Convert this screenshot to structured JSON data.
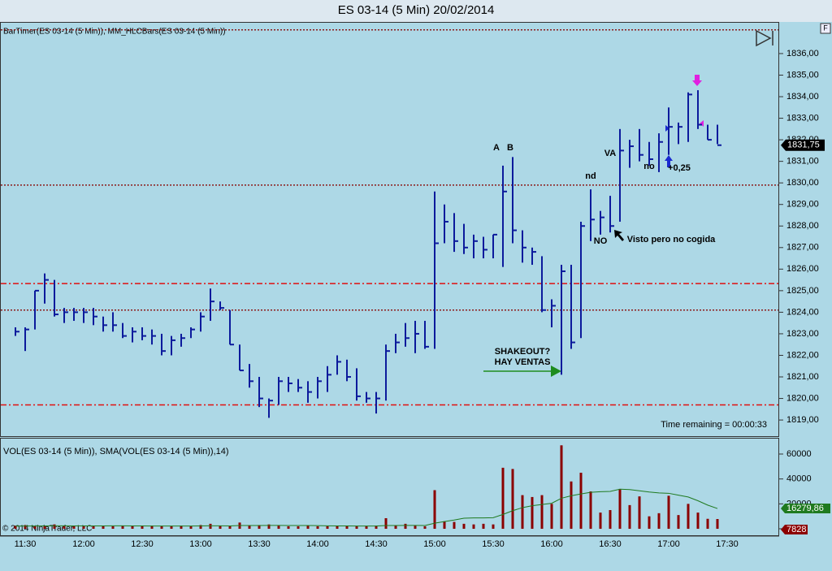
{
  "window": {
    "button": "F",
    "copyright": "© 2014 NinjaTrader, LLC"
  },
  "chart_data": [
    {
      "type": "hlc",
      "title": "ES 03-14 (5 Min)  20/02/2014",
      "label": "BarTimer(ES 03-14 (5 Min)), MM_HLCBars(ES 03-14 (5 Min))",
      "timer_text": "Time remaining = 00:00:33",
      "color": "#0c1a9c",
      "categories": [
        null,
        "11:30",
        null,
        null,
        null,
        null,
        null,
        "12:00",
        null,
        null,
        null,
        null,
        null,
        "12:30",
        null,
        null,
        null,
        null,
        null,
        "13:00",
        null,
        null,
        null,
        null,
        null,
        "13:30",
        null,
        null,
        null,
        null,
        null,
        "14:00",
        null,
        null,
        null,
        null,
        null,
        "14:30",
        null,
        null,
        null,
        null,
        null,
        "15:00",
        null,
        null,
        null,
        null,
        null,
        "15:30",
        null,
        null,
        null,
        null,
        null,
        "16:00",
        null,
        null,
        null,
        null,
        null,
        "16:30",
        null,
        null,
        null,
        null,
        null,
        "17:00",
        null,
        null,
        null,
        null,
        null,
        "17:30"
      ],
      "high": [
        1823.3,
        1823.3,
        1825.0,
        1825.8,
        1825.5,
        1824.2,
        1824.2,
        1824.2,
        1824.2,
        1823.8,
        1824.0,
        1823.5,
        1823.3,
        1823.3,
        1823.2,
        1823.0,
        1822.9,
        1823.0,
        1823.3,
        1824.0,
        1825.1,
        1824.5,
        1824.1,
        1822.5,
        1821.6,
        1821.0,
        1820.0,
        1821.0,
        1821.0,
        1820.9,
        1820.8,
        1821.0,
        1821.5,
        1822.0,
        1821.8,
        1821.4,
        1820.3,
        1820.3,
        1822.5,
        1823.0,
        1823.5,
        1823.6,
        1823.6,
        1829.6,
        1829.0,
        1828.6,
        1828.1,
        1827.6,
        1827.5,
        1827.6,
        1830.8,
        1831.2,
        1827.8,
        1827.0,
        1826.6,
        1824.6,
        1826.2,
        1826.2,
        1828.2,
        1829.7,
        1828.7,
        1829.4,
        1832.5,
        1832.0,
        1832.5,
        1831.9,
        1832.3,
        1833.5,
        1832.8,
        1834.2,
        1834.3,
        1832.7,
        1832.7,
        null
      ],
      "low": [
        1822.9,
        1822.2,
        1823.2,
        1824.4,
        1823.8,
        1823.5,
        1823.6,
        1823.5,
        1823.4,
        1823.1,
        1823.1,
        1822.8,
        1822.6,
        1822.7,
        1822.5,
        1822.0,
        1822.0,
        1822.4,
        1822.8,
        1823.1,
        1823.6,
        1824.1,
        1822.5,
        1821.3,
        1820.5,
        1819.6,
        1819.1,
        1819.7,
        1820.3,
        1820.3,
        1819.8,
        1820.0,
        1820.3,
        1821.1,
        1820.8,
        1819.9,
        1819.8,
        1819.3,
        1819.9,
        1822.1,
        1822.4,
        1822.1,
        1822.3,
        1822.3,
        1827.2,
        1826.8,
        1826.7,
        1826.5,
        1826.5,
        1826.5,
        1826.1,
        1827.2,
        1826.3,
        1826.2,
        1824.0,
        1823.3,
        1821.1,
        1822.3,
        1822.8,
        1827.3,
        1827.6,
        1827.7,
        1828.2,
        1830.7,
        1831.0,
        1830.8,
        1830.5,
        1831.3,
        1831.8,
        1831.9,
        1832.5,
        1832.0,
        1831.8,
        null
      ],
      "close": [
        1823.1,
        1823.2,
        1825.0,
        1825.5,
        1823.9,
        1824.0,
        1824.0,
        1824.0,
        1823.8,
        1823.4,
        1823.4,
        1822.9,
        1823.1,
        1822.9,
        1822.9,
        1822.2,
        1822.7,
        1822.8,
        1823.2,
        1823.8,
        1824.5,
        1824.2,
        1822.5,
        1821.3,
        1820.8,
        1820.0,
        1819.9,
        1820.8,
        1820.7,
        1820.5,
        1820.3,
        1820.8,
        1821.1,
        1821.7,
        1821.0,
        1820.1,
        1820.0,
        1820.0,
        1822.2,
        1822.6,
        1822.8,
        1823.0,
        1822.4,
        1827.2,
        1828.2,
        1827.3,
        1827.0,
        1827.3,
        1826.9,
        1827.6,
        1829.6,
        1827.8,
        1827.0,
        1826.8,
        1824.1,
        1824.3,
        1825.9,
        1822.6,
        1828.0,
        1828.3,
        1828.4,
        1828.0,
        1831.5,
        1831.7,
        1831.3,
        1831.1,
        1831.9,
        1832.6,
        1832.6,
        1834.1,
        1832.7,
        1832.0,
        1831.75,
        null
      ],
      "close_label": "1831,75",
      "ylim": [
        1818.25,
        1837.43
      ],
      "yticks": [
        {
          "value": 1819,
          "label": "1819,00"
        },
        {
          "value": 1820,
          "label": "1820,00"
        },
        {
          "value": 1821,
          "label": "1821,00"
        },
        {
          "value": 1822,
          "label": "1822,00"
        },
        {
          "value": 1823,
          "label": "1823,00"
        },
        {
          "value": 1824,
          "label": "1824,00"
        },
        {
          "value": 1825,
          "label": "1825,00"
        },
        {
          "value": 1826,
          "label": "1826,00"
        },
        {
          "value": 1827,
          "label": "1827,00"
        },
        {
          "value": 1828,
          "label": "1828,00"
        },
        {
          "value": 1829,
          "label": "1829,00"
        },
        {
          "value": 1830,
          "label": "1830,00"
        },
        {
          "value": 1831,
          "label": "1831,00"
        },
        {
          "value": 1832,
          "label": "1832,00"
        },
        {
          "value": 1833,
          "label": "1833,00"
        },
        {
          "value": 1834,
          "label": "1834,00"
        },
        {
          "value": 1835,
          "label": "1835,00"
        },
        {
          "value": 1836,
          "label": "1836,00"
        }
      ],
      "levels": [
        {
          "value": 1837.1,
          "color": "#8b1a1a",
          "style": "dot"
        },
        {
          "value": 1829.9,
          "color": "#8b1a1a",
          "style": "dot"
        },
        {
          "value": 1825.33,
          "color": "#e01010",
          "style": "dashdot"
        },
        {
          "value": 1824.1,
          "color": "#8b1a1a",
          "style": "dot"
        },
        {
          "value": 1819.7,
          "color": "#e01010",
          "style": "dashdot"
        }
      ],
      "annotations": [
        "A",
        "B",
        "nd",
        "VA",
        "no",
        "+0,25",
        "NO",
        "Visto pero no cogida",
        "SHAKEOUT?",
        "HAY VENTAS"
      ]
    },
    {
      "type": "volume",
      "label": "VOL(ES 03-14 (5 Min)), SMA(VOL(ES 03-14 (5 Min)),14)",
      "volume_color": "#8b0000",
      "sma_color": "#1f7a1f",
      "volume": [
        2500,
        3000,
        2000,
        2500,
        3500,
        2500,
        2000,
        2500,
        2000,
        2500,
        2000,
        2500,
        2000,
        2000,
        2500,
        2000,
        2000,
        2500,
        2000,
        3000,
        4000,
        2500,
        2000,
        5000,
        2500,
        3000,
        3500,
        2500,
        2000,
        2000,
        2500,
        2000,
        2000,
        2500,
        2000,
        2000,
        2000,
        2500,
        8500,
        2500,
        4000,
        2500,
        2000,
        31000,
        6000,
        5500,
        4000,
        3500,
        4000,
        3500,
        49000,
        48000,
        27000,
        25500,
        27000,
        20000,
        67000,
        38000,
        45000,
        30000,
        13000,
        15000,
        32000,
        19000,
        26000,
        10000,
        12500,
        26500,
        11000,
        20000,
        13000,
        8000,
        7828,
        null
      ],
      "sma": [
        2100,
        2200,
        2200,
        2300,
        2400,
        2400,
        2300,
        2300,
        2300,
        2300,
        2400,
        2400,
        2300,
        2300,
        2200,
        2200,
        2200,
        2200,
        2200,
        2300,
        2400,
        2400,
        2300,
        2600,
        2600,
        2600,
        2700,
        2700,
        2600,
        2600,
        2600,
        2500,
        2400,
        2300,
        2300,
        2200,
        2200,
        2200,
        2600,
        2600,
        2700,
        2700,
        2600,
        4500,
        5800,
        7000,
        8500,
        8700,
        8700,
        8900,
        11500,
        14500,
        17000,
        18500,
        19500,
        20500,
        24500,
        26500,
        28000,
        29300,
        29800,
        30000,
        31800,
        31500,
        30500,
        29500,
        28800,
        28500,
        27000,
        25500,
        22500,
        19000,
        16279.86,
        null
      ],
      "sma_label": "16279,86",
      "ylim": [
        -5860,
        72400
      ],
      "yticks": [
        0,
        20000,
        40000,
        60000
      ]
    }
  ]
}
